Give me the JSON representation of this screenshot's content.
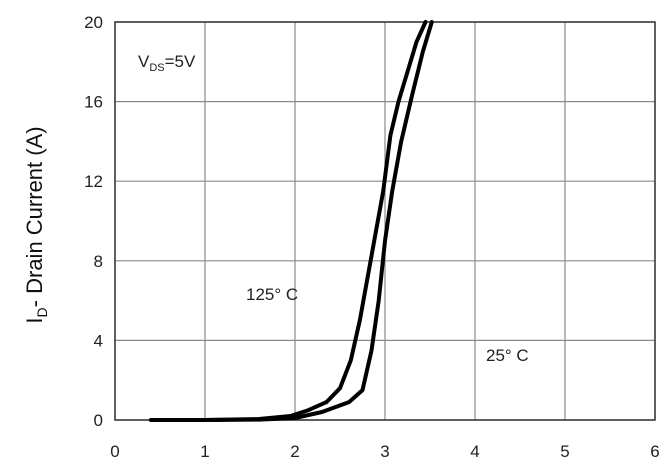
{
  "chart_data": {
    "type": "line",
    "xlabel": "",
    "ylabel_main": "I",
    "ylabel_sub": "D",
    "ylabel_rest": "- Drain Current (A)",
    "xlim": [
      0,
      6
    ],
    "ylim": [
      0,
      20
    ],
    "x_ticks": [
      0,
      1,
      2,
      3,
      4,
      5,
      6
    ],
    "y_ticks": [
      0,
      4,
      8,
      12,
      16,
      20
    ],
    "grid": true,
    "condition": {
      "main": "V",
      "sub": "DS",
      "rest": "=5V"
    },
    "annotations": [
      {
        "text": "125° C"
      },
      {
        "text": "25° C"
      }
    ],
    "series": [
      {
        "label": "125° C",
        "x": [
          0.4,
          1.0,
          1.6,
          1.95,
          2.15,
          2.35,
          2.5,
          2.62,
          2.72,
          2.82,
          2.9,
          2.98,
          3.06,
          3.15,
          3.25,
          3.35,
          3.45
        ],
        "y": [
          0.0,
          0.0,
          0.05,
          0.2,
          0.5,
          0.9,
          1.6,
          3.0,
          5.0,
          7.5,
          9.5,
          11.5,
          14.3,
          16.0,
          17.5,
          19.0,
          20.0
        ]
      },
      {
        "label": "25° C",
        "x": [
          0.4,
          1.0,
          1.6,
          2.0,
          2.3,
          2.6,
          2.75,
          2.85,
          2.93,
          3.0,
          3.08,
          3.18,
          3.3,
          3.42,
          3.52
        ],
        "y": [
          0.0,
          0.0,
          0.02,
          0.1,
          0.4,
          0.9,
          1.5,
          3.5,
          6.0,
          9.0,
          11.5,
          14.0,
          16.3,
          18.5,
          20.0
        ]
      }
    ]
  }
}
